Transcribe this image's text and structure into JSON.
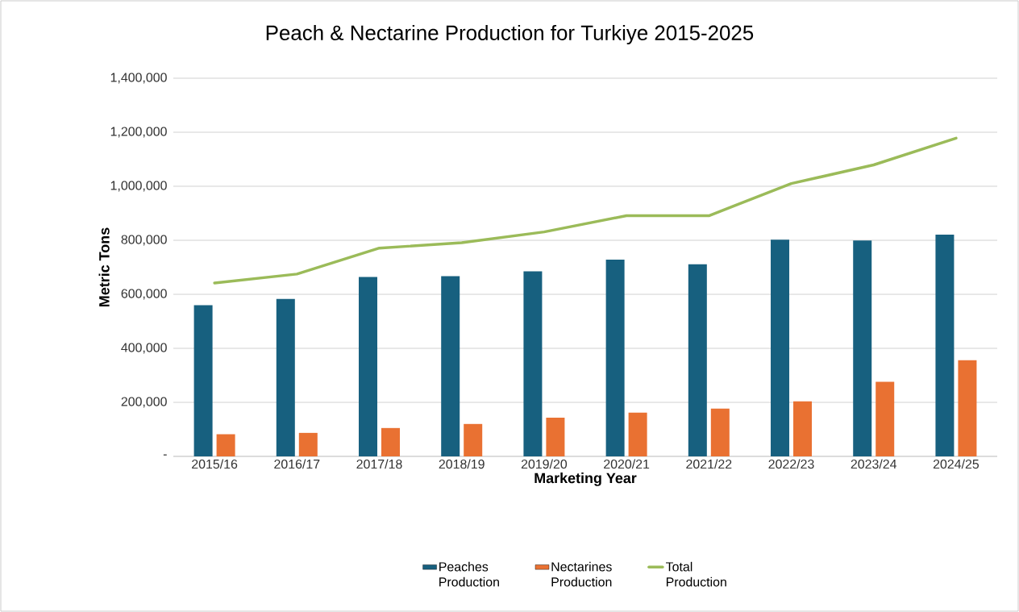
{
  "chart_data": {
    "type": "bar",
    "title": "Peach & Nectarine Production for Turkiye 2015-2025",
    "xlabel": "Marketing Year",
    "ylabel": "Metric Tons",
    "categories": [
      "2015/16",
      "2016/17",
      "2017/18",
      "2018/19",
      "2019/20",
      "2020/21",
      "2021/22",
      "2022/23",
      "2023/24",
      "2024/25"
    ],
    "series": [
      {
        "name": "Peaches Production",
        "color": "#17607f",
        "values": [
          560000,
          583000,
          664000,
          667000,
          685000,
          728000,
          711000,
          802000,
          799000,
          821000
        ]
      },
      {
        "name": "Nectarines Production",
        "color": "#e97132",
        "values": [
          82000,
          87000,
          105000,
          120000,
          143000,
          162000,
          177000,
          204000,
          276000,
          356000
        ]
      },
      {
        "name": "Total Production",
        "type": "line",
        "color": "#9bbb59",
        "values": [
          642000,
          675000,
          771000,
          791000,
          831000,
          891000,
          891000,
          1010000,
          1079000,
          1178000
        ]
      }
    ],
    "ylim": [
      0,
      1400000
    ],
    "yticks": [
      {
        "value": 0,
        "label": "-"
      },
      {
        "value": 200000,
        "label": "200,000"
      },
      {
        "value": 400000,
        "label": "400,000"
      },
      {
        "value": 600000,
        "label": "600,000"
      },
      {
        "value": 800000,
        "label": "800,000"
      },
      {
        "value": 1000000,
        "label": "1,000,000"
      },
      {
        "value": 1200000,
        "label": "1,200,000"
      },
      {
        "value": 1400000,
        "label": "1,400,000"
      }
    ],
    "grid": "y",
    "legend": "bottom"
  }
}
